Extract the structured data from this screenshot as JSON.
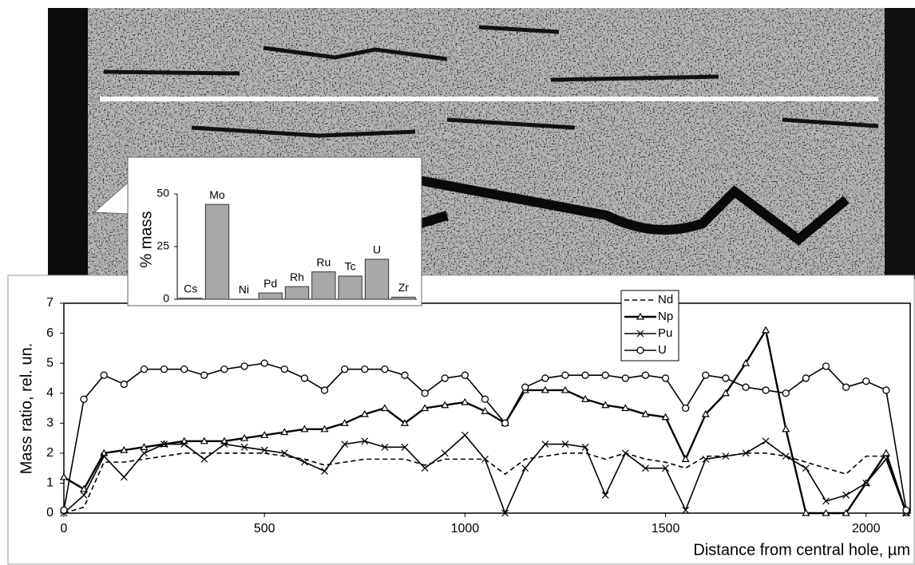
{
  "chart_data": [
    {
      "type": "bar",
      "ylabel": "% mass",
      "categories": [
        "Cs",
        "Mo",
        "Ni",
        "Pd",
        "Rh",
        "Ru",
        "Tc",
        "U",
        "Zr"
      ],
      "values": [
        0.5,
        45,
        0,
        3,
        6,
        13,
        11,
        19,
        1
      ],
      "color": "#a8a8a8",
      "ylim": [
        0,
        50
      ],
      "yticks": [
        0,
        25,
        50
      ]
    },
    {
      "type": "line",
      "xlabel": "Distance from central hole, µm",
      "ylabel": "Mass ratio, rel. un.",
      "x": [
        0,
        50,
        100,
        150,
        200,
        250,
        300,
        350,
        400,
        450,
        500,
        550,
        600,
        650,
        700,
        750,
        800,
        850,
        900,
        950,
        1000,
        1050,
        1100,
        1150,
        1200,
        1250,
        1300,
        1350,
        1400,
        1450,
        1500,
        1550,
        1600,
        1650,
        1700,
        1750,
        1800,
        1850,
        1900,
        1950,
        2000,
        2050,
        2100
      ],
      "series": [
        {
          "name": "Nd",
          "color": "#000000",
          "dash": true,
          "marker": "none",
          "values": [
            0,
            0.2,
            1.7,
            1.7,
            1.8,
            1.9,
            2.0,
            2.0,
            2.0,
            2.0,
            2.0,
            1.9,
            1.8,
            1.6,
            1.7,
            1.8,
            1.8,
            1.8,
            1.6,
            1.8,
            1.8,
            1.8,
            1.3,
            1.8,
            1.9,
            2.0,
            2.0,
            1.8,
            2.0,
            1.8,
            1.7,
            1.5,
            1.9,
            1.9,
            2.0,
            2.0,
            1.9,
            1.7,
            1.5,
            1.3,
            1.9,
            1.9,
            0
          ]
        },
        {
          "name": "Np",
          "color": "#000000",
          "dash": false,
          "marker": "triangle",
          "values": [
            1.2,
            0.8,
            2.0,
            2.1,
            2.2,
            2.3,
            2.4,
            2.4,
            2.4,
            2.5,
            2.6,
            2.7,
            2.8,
            2.8,
            3.0,
            3.3,
            3.5,
            3.0,
            3.5,
            3.6,
            3.7,
            3.4,
            3.0,
            4.1,
            4.1,
            4.1,
            3.8,
            3.6,
            3.5,
            3.3,
            3.2,
            1.8,
            3.3,
            4.0,
            5.0,
            6.1,
            2.8,
            0,
            0,
            0,
            1.0,
            2.0,
            0
          ]
        },
        {
          "name": "Pu",
          "color": "#000000",
          "dash": false,
          "marker": "x",
          "values": [
            0,
            0.6,
            1.9,
            1.2,
            2.0,
            2.3,
            2.3,
            1.8,
            2.3,
            2.2,
            2.1,
            2.0,
            1.7,
            1.4,
            2.3,
            2.4,
            2.2,
            2.2,
            1.5,
            2.0,
            2.6,
            1.8,
            0,
            1.5,
            2.3,
            2.3,
            2.2,
            0.6,
            2.0,
            1.5,
            1.5,
            0.1,
            1.8,
            1.9,
            2.0,
            2.4,
            1.9,
            1.5,
            0.4,
            0.6,
            1.0,
            1.8,
            0
          ]
        },
        {
          "name": "U",
          "color": "#000000",
          "dash": false,
          "marker": "circle",
          "values": [
            0.1,
            3.8,
            4.6,
            4.3,
            4.8,
            4.8,
            4.8,
            4.6,
            4.8,
            4.9,
            5.0,
            4.8,
            4.5,
            4.1,
            4.8,
            4.8,
            4.8,
            4.6,
            4.0,
            4.5,
            4.6,
            3.8,
            3.0,
            4.2,
            4.5,
            4.6,
            4.6,
            4.6,
            4.5,
            4.6,
            4.5,
            3.5,
            4.6,
            4.5,
            4.2,
            4.1,
            4.0,
            4.5,
            4.9,
            4.2,
            4.4,
            4.1,
            0.1
          ]
        }
      ],
      "xlim": [
        0,
        2110
      ],
      "xticks": [
        0,
        500,
        1000,
        1500,
        2000
      ],
      "ylim": [
        0,
        7
      ],
      "yticks": [
        0,
        1,
        2,
        3,
        4,
        5,
        6,
        7
      ],
      "legend": "top-right"
    }
  ]
}
